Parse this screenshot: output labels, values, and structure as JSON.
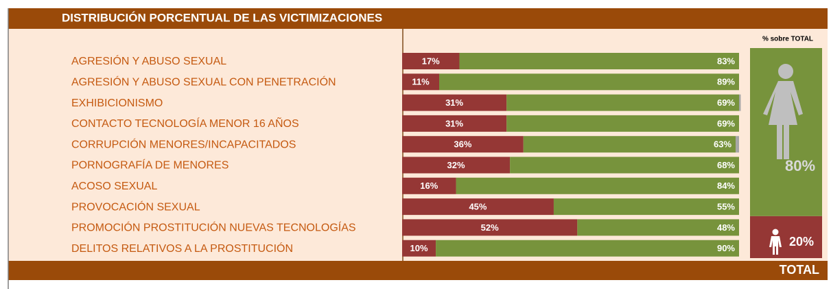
{
  "chart_data": {
    "type": "bar",
    "orientation": "horizontal",
    "title": "DISTRIBUCIÓN PORCENTUAL DE LAS VICTIMIZACIONES",
    "categories": [
      "AGRESIÓN Y ABUSO SEXUAL",
      "AGRESIÓN Y ABUSO SEXUAL CON PENETRACIÓN",
      "EXHIBICIONISMO",
      "CONTACTO TECNOLOGÍA MENOR 16 AÑOS",
      "CORRUPCIÓN MENORES/INCAPACITADOS",
      "PORNOGRAFÍA DE MENORES",
      "ACOSO SEXUAL",
      "PROVOCACIÓN SEXUAL",
      "PROMOCIÓN PROSTITUCIÓN NUEVAS TECNOLOGÍAS",
      "DELITOS RELATIVOS A LA PROSTITUCIÓN"
    ],
    "series": [
      {
        "color": "#953735",
        "values": [
          17,
          11,
          31,
          31,
          36,
          32,
          16,
          45,
          52,
          10
        ],
        "value_labels": [
          "17%",
          "11%",
          "31%",
          "31%",
          "36%",
          "32%",
          "16%",
          "45%",
          "52%",
          "10%"
        ]
      },
      {
        "color": "#77933c",
        "values": [
          83,
          89,
          69,
          69,
          63,
          68,
          84,
          55,
          48,
          90
        ],
        "value_labels": [
          "83%",
          "89%",
          "69%",
          "69%",
          "63%",
          "68%",
          "84%",
          "55%",
          "48%",
          "90%"
        ]
      },
      {
        "color": "#a6a6a6",
        "values": [
          0,
          0,
          0.5,
          0,
          1,
          0,
          0,
          0,
          0,
          0
        ]
      }
    ],
    "xlim": [
      0,
      100
    ],
    "total": {
      "label": "% sobre TOTAL",
      "colors": [
        "#953735",
        "#77933c"
      ],
      "values": [
        20,
        80
      ],
      "value_labels": [
        "20%",
        "80%"
      ]
    },
    "footer": "TOTAL"
  }
}
